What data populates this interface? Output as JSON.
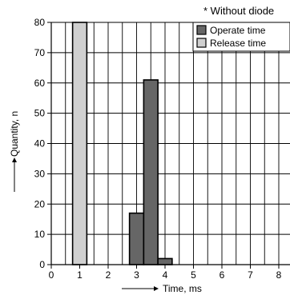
{
  "chart_data": {
    "type": "bar",
    "note": "* Without diode",
    "xlabel": "Time, ms",
    "ylabel": "Quantity, n",
    "x_ticks": [
      "0",
      "1",
      "2",
      "3",
      "4",
      "5",
      "6",
      "7",
      "8"
    ],
    "y_ticks": [
      "0",
      "10",
      "20",
      "30",
      "40",
      "50",
      "60",
      "70",
      "80"
    ],
    "xlim": [
      0,
      8.2
    ],
    "ylim": [
      0,
      80
    ],
    "grid": true,
    "bin_width": 0.5,
    "legend_position": "top-right",
    "series": [
      {
        "name": "Operate time",
        "color": "#666666",
        "bins": [
          {
            "x": 3.0,
            "value": 17
          },
          {
            "x": 3.5,
            "value": 61
          },
          {
            "x": 4.0,
            "value": 2
          }
        ]
      },
      {
        "name": "Release time",
        "color": "#d0d0d0",
        "bins": [
          {
            "x": 1.0,
            "value": 80
          }
        ]
      }
    ]
  }
}
